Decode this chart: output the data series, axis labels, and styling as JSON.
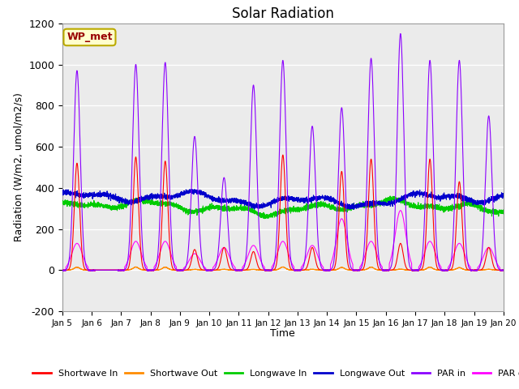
{
  "title": "Solar Radiation",
  "ylabel": "Radiation (W/m2, umol/m2/s)",
  "xlabel": "Time",
  "ylim": [
    -200,
    1200
  ],
  "yticks": [
    -200,
    0,
    200,
    400,
    600,
    800,
    1000,
    1200
  ],
  "xlim": [
    0,
    15
  ],
  "xtick_labels": [
    "Jan 5",
    "Jan 6",
    "Jan 7",
    "Jan 8",
    "Jan 9",
    "Jan 10",
    "Jan 11",
    "Jan 12",
    "Jan 13",
    "Jan 14",
    "Jan 15",
    "Jan 16",
    "Jan 17",
    "Jan 18",
    "Jan 19",
    "Jan 20"
  ],
  "colors": {
    "shortwave_in": "#ff0000",
    "shortwave_out": "#ff8c00",
    "longwave_in": "#00cc00",
    "longwave_out": "#0000cc",
    "par_in": "#8b00ff",
    "par_out": "#ff00ff"
  },
  "legend_labels": [
    "Shortwave In",
    "Shortwave Out",
    "Longwave In",
    "Longwave Out",
    "PAR in",
    "PAR out"
  ],
  "box_label": "WP_met",
  "box_color": "#ffffcc",
  "box_edge_color": "#bbaa00",
  "bg_color": "#ebebeb",
  "grid_color": "#ffffff",
  "n_days": 15,
  "pts_per_day": 288,
  "seed": 42,
  "sw_in_peaks": [
    520,
    0,
    550,
    530,
    100,
    110,
    90,
    560,
    110,
    480,
    540,
    130,
    540,
    430,
    110
  ],
  "par_in_peaks": [
    970,
    0,
    1000,
    1010,
    650,
    450,
    900,
    1020,
    700,
    790,
    1030,
    1150,
    1020,
    1020,
    750
  ],
  "par_out_peaks": [
    130,
    0,
    140,
    140,
    80,
    110,
    120,
    140,
    120,
    250,
    140,
    290,
    140,
    130,
    110
  ]
}
